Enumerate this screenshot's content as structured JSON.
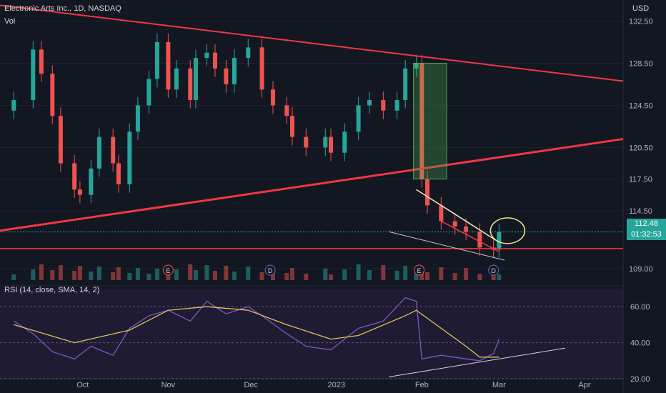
{
  "header": {
    "symbol": "Electronic Arts Inc., 1D, NASDAQ",
    "volume_label": "Vol",
    "currency": "USD"
  },
  "rsi_label": "RSI (14, close, SMA, 14, 2)",
  "price_tag": {
    "price": "112.48",
    "countdown": "01:32:53"
  },
  "colors": {
    "up": "#26a69a",
    "down": "#ef5350",
    "trendline": "#f23645",
    "rsi": "#7e57c2",
    "rsi_ma": "#e0c35a",
    "bg": "#131722"
  },
  "chart_data": [
    {
      "type": "candlestick",
      "title": "Electronic Arts Inc., 1D, NASDAQ",
      "y_axis": {
        "ticks": [
          "132.50",
          "128.50",
          "124.50",
          "120.50",
          "117.50",
          "114.50",
          "112.48",
          "109.00"
        ],
        "range": [
          107.5,
          134.5
        ]
      },
      "x_axis": {
        "ticks": [
          "Oct",
          "Nov",
          "Dec",
          "2023",
          "Feb",
          "Mar",
          "Apr"
        ]
      },
      "series": [
        {
          "name": "close",
          "points": [
            [
              "2022-09-06",
              125.0
            ],
            [
              "2022-09-13",
              129.8
            ],
            [
              "2022-09-16",
              127.5
            ],
            [
              "2022-09-20",
              123.5
            ],
            [
              "2022-09-23",
              119.0
            ],
            [
              "2022-09-28",
              116.5
            ],
            [
              "2022-09-30",
              116.0
            ],
            [
              "2022-10-04",
              118.5
            ],
            [
              "2022-10-07",
              121.5
            ],
            [
              "2022-10-12",
              119.0
            ],
            [
              "2022-10-14",
              117.0
            ],
            [
              "2022-10-18",
              122.0
            ],
            [
              "2022-10-21",
              124.5
            ],
            [
              "2022-10-25",
              127.0
            ],
            [
              "2022-10-28",
              130.5
            ],
            [
              "2022-11-01",
              126.0
            ],
            [
              "2022-11-04",
              128.0
            ],
            [
              "2022-11-09",
              125.0
            ],
            [
              "2022-11-11",
              129.0
            ],
            [
              "2022-11-15",
              129.5
            ],
            [
              "2022-11-18",
              128.0
            ],
            [
              "2022-11-22",
              126.5
            ],
            [
              "2022-11-25",
              129.0
            ],
            [
              "2022-11-30",
              130.0
            ],
            [
              "2022-12-05",
              126.0
            ],
            [
              "2022-12-09",
              124.5
            ],
            [
              "2022-12-14",
              123.5
            ],
            [
              "2022-12-16",
              121.5
            ],
            [
              "2022-12-21",
              120.5
            ],
            [
              "2022-12-28",
              121.5
            ],
            [
              "2022-12-30",
              120.0
            ],
            [
              "2023-01-04",
              122.0
            ],
            [
              "2023-01-09",
              124.5
            ],
            [
              "2023-01-13",
              125.0
            ],
            [
              "2023-01-18",
              124.0
            ],
            [
              "2023-01-23",
              125.0
            ],
            [
              "2023-01-26",
              128.0
            ],
            [
              "2023-01-30",
              128.5
            ],
            [
              "2023-02-01",
              117.5
            ],
            [
              "2023-02-03",
              115.0
            ],
            [
              "2023-02-08",
              113.5
            ],
            [
              "2023-02-13",
              113.0
            ],
            [
              "2023-02-17",
              112.5
            ],
            [
              "2023-02-22",
              111.0
            ],
            [
              "2023-02-27",
              110.8
            ],
            [
              "2023-03-01",
              112.48
            ]
          ]
        }
      ],
      "annotations": [
        "E",
        "D",
        "E",
        "D"
      ]
    },
    {
      "type": "line",
      "title": "RSI (14, close, SMA, 14, 2)",
      "y_axis": {
        "ticks": [
          "60.00",
          "40.00",
          "20.00"
        ],
        "range": [
          20,
          70
        ]
      },
      "series": [
        {
          "name": "RSI",
          "points": [
            [
              "2022-09-06",
              52
            ],
            [
              "2022-09-13",
              45
            ],
            [
              "2022-09-20",
              35
            ],
            [
              "2022-09-28",
              31
            ],
            [
              "2022-10-04",
              38
            ],
            [
              "2022-10-12",
              33
            ],
            [
              "2022-10-18",
              48
            ],
            [
              "2022-10-25",
              55
            ],
            [
              "2022-11-01",
              58
            ],
            [
              "2022-11-09",
              52
            ],
            [
              "2022-11-15",
              63
            ],
            [
              "2022-11-22",
              56
            ],
            [
              "2022-11-30",
              60
            ],
            [
              "2022-12-05",
              55
            ],
            [
              "2022-12-14",
              45
            ],
            [
              "2022-12-21",
              38
            ],
            [
              "2022-12-30",
              36
            ],
            [
              "2023-01-09",
              48
            ],
            [
              "2023-01-18",
              52
            ],
            [
              "2023-01-26",
              65
            ],
            [
              "2023-01-30",
              63
            ],
            [
              "2023-02-01",
              31
            ],
            [
              "2023-02-08",
              33
            ],
            [
              "2023-02-17",
              31
            ],
            [
              "2023-02-22",
              30
            ],
            [
              "2023-02-27",
              34
            ],
            [
              "2023-03-01",
              42
            ]
          ]
        },
        {
          "name": "SMA",
          "points": [
            [
              "2022-09-06",
              50
            ],
            [
              "2022-09-28",
              40
            ],
            [
              "2022-10-18",
              47
            ],
            [
              "2022-11-01",
              58
            ],
            [
              "2022-11-15",
              60
            ],
            [
              "2022-11-30",
              58
            ],
            [
              "2022-12-14",
              50
            ],
            [
              "2022-12-30",
              42
            ],
            [
              "2023-01-09",
              44
            ],
            [
              "2023-01-26",
              55
            ],
            [
              "2023-01-30",
              58
            ],
            [
              "2023-02-08",
              48
            ],
            [
              "2023-02-17",
              38
            ],
            [
              "2023-02-22",
              32
            ],
            [
              "2023-03-01",
              32
            ]
          ]
        }
      ]
    }
  ]
}
